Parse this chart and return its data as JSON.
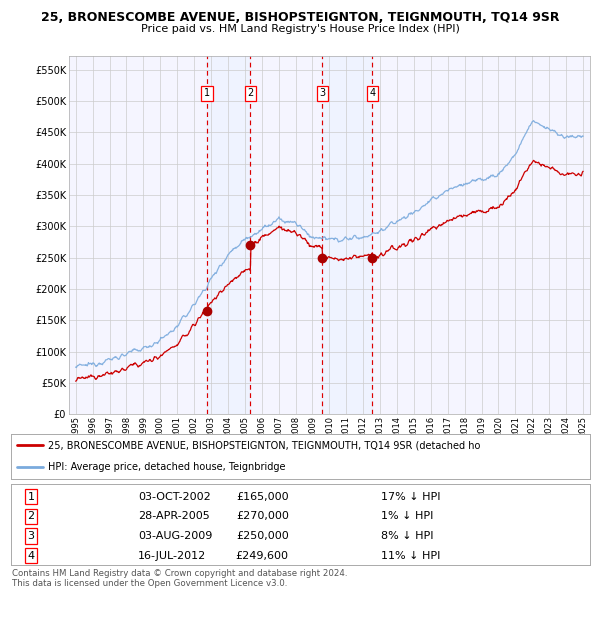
{
  "title1": "25, BRONESCOMBE AVENUE, BISHOPSTEIGNTON, TEIGNMOUTH, TQ14 9SR",
  "title2": "Price paid vs. HM Land Registry's House Price Index (HPI)",
  "background_color": "#ffffff",
  "grid_color": "#cccccc",
  "plot_bg": "#f5f5ff",
  "red_line_color": "#cc0000",
  "blue_line_color": "#7aaadd",
  "sale_marker_color": "#aa0000",
  "dashed_line_color": "#dd0000",
  "shade_color": "#ddeeff",
  "yticks": [
    0,
    50000,
    100000,
    150000,
    200000,
    250000,
    300000,
    350000,
    400000,
    450000,
    500000,
    550000
  ],
  "ytick_labels": [
    "£0",
    "£50K",
    "£100K",
    "£150K",
    "£200K",
    "£250K",
    "£300K",
    "£350K",
    "£400K",
    "£450K",
    "£500K",
    "£550K"
  ],
  "xlim_start": 1994.6,
  "xlim_end": 2025.4,
  "ylim_min": 0,
  "ylim_max": 572000,
  "sale_dates": [
    2002.75,
    2005.33,
    2009.59,
    2012.54
  ],
  "sale_prices": [
    165000,
    270000,
    250000,
    249600
  ],
  "sale_labels": [
    "1",
    "2",
    "3",
    "4"
  ],
  "shade_ranges": [
    [
      2002.75,
      2005.33
    ],
    [
      2009.59,
      2012.54
    ]
  ],
  "legend_entries": [
    "25, BRONESCOMBE AVENUE, BISHOPSTEIGNTON, TEIGNMOUTH, TQ14 9SR (detached ho",
    "HPI: Average price, detached house, Teignbridge"
  ],
  "table_data": [
    [
      "1",
      "03-OCT-2002",
      "£165,000",
      "17% ↓ HPI"
    ],
    [
      "2",
      "28-APR-2005",
      "£270,000",
      "1% ↓ HPI"
    ],
    [
      "3",
      "03-AUG-2009",
      "£250,000",
      "8% ↓ HPI"
    ],
    [
      "4",
      "16-JUL-2012",
      "£249,600",
      "11% ↓ HPI"
    ]
  ],
  "footer": "Contains HM Land Registry data © Crown copyright and database right 2024.\nThis data is licensed under the Open Government Licence v3.0."
}
